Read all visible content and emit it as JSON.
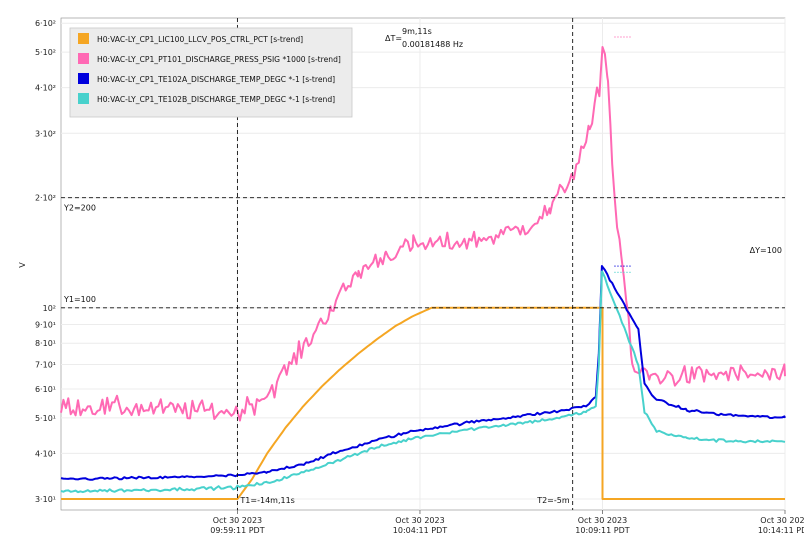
{
  "chart_data": {
    "type": "line",
    "y_axis_label": "V",
    "y_scale": "log",
    "ylim": [
      28,
      620
    ],
    "y_ticks": [
      {
        "label": "3·10¹",
        "value": 30
      },
      {
        "label": "4·10¹",
        "value": 40
      },
      {
        "label": "5·10¹",
        "value": 50
      },
      {
        "label": "6·10¹",
        "value": 60
      },
      {
        "label": "7·10¹",
        "value": 70
      },
      {
        "label": "8·10¹",
        "value": 80
      },
      {
        "label": "9·10¹",
        "value": 90
      },
      {
        "label": "10²",
        "value": 100
      },
      {
        "label": "2·10²",
        "value": 200
      },
      {
        "label": "3·10²",
        "value": 300
      },
      {
        "label": "4·10²",
        "value": 400
      },
      {
        "label": "5·10²",
        "value": 500
      },
      {
        "label": "6·10²",
        "value": 600
      }
    ],
    "xlim": [
      "2023-10-30 09:54:21",
      "2023-10-30 10:14:11"
    ],
    "x_ticks": [
      {
        "l1": "Oct 30 2023",
        "l2": "09:59:11 PDT",
        "time": "2023-10-30 09:59:11"
      },
      {
        "l1": "Oct 30 2023",
        "l2": "10:04:11 PDT",
        "time": "2023-10-30 10:04:11"
      },
      {
        "l1": "Oct 30 2023",
        "l2": "10:09:11 PDT",
        "time": "2023-10-30 10:09:11"
      },
      {
        "l1": "Oct 30 2023",
        "l2": "10:14:11 PDT",
        "time": "2023-10-30 10:14:11"
      }
    ],
    "legend_position": "top-left",
    "cursors": {
      "t1": {
        "label": "T1=-14m,11s",
        "time": "2023-10-30 09:59:11"
      },
      "t2": {
        "label": "T2=-5m",
        "time": "2023-10-30 10:08:22"
      },
      "y1": {
        "label": "Y1=100",
        "value": 100
      },
      "y2": {
        "label": "Y2=200",
        "value": 200
      },
      "delta_t_label": "ΔT=",
      "delta_t_value": "9m,11s",
      "delta_t_freq": "0.00181488 Hz",
      "delta_y": "ΔY=100"
    },
    "series": [
      {
        "name": "H0:VAC-LY_CP1_LIC100_LLCV_POS_CTRL_PCT [s-trend]",
        "color": "#F5A623",
        "points": [
          [
            "2023-10-30 09:54:21",
            30
          ],
          [
            "2023-10-30 09:59:11",
            30
          ],
          [
            "2023-10-30 09:59:35",
            34
          ],
          [
            "2023-10-30 10:00:00",
            40
          ],
          [
            "2023-10-30 10:00:30",
            47
          ],
          [
            "2023-10-30 10:01:00",
            54
          ],
          [
            "2023-10-30 10:01:30",
            61
          ],
          [
            "2023-10-30 10:02:00",
            68
          ],
          [
            "2023-10-30 10:02:30",
            75
          ],
          [
            "2023-10-30 10:03:00",
            82
          ],
          [
            "2023-10-30 10:03:30",
            89
          ],
          [
            "2023-10-30 10:04:00",
            95
          ],
          [
            "2023-10-30 10:04:30",
            100
          ],
          [
            "2023-10-30 10:09:11",
            100
          ],
          [
            "2023-10-30 10:09:11",
            30
          ],
          [
            "2023-10-30 10:14:11",
            30
          ]
        ],
        "noise": 0,
        "dotted_after": "2023-10-30 10:09:11"
      },
      {
        "name": "H0:VAC-LY_CP1_PT101_DISCHARGE_PRESS_PSIG *1000 [s-trend]",
        "color": "#FF69B4",
        "points": [
          [
            "2023-10-30 09:54:21",
            54
          ],
          [
            "2023-10-30 09:59:11",
            52
          ],
          [
            "2023-10-30 10:00:00",
            58
          ],
          [
            "2023-10-30 10:01:00",
            78
          ],
          [
            "2023-10-30 10:01:45",
            100
          ],
          [
            "2023-10-30 10:02:30",
            125
          ],
          [
            "2023-10-30 10:03:15",
            140
          ],
          [
            "2023-10-30 10:04:00",
            148
          ],
          [
            "2023-10-30 10:05:00",
            150
          ],
          [
            "2023-10-30 10:06:00",
            155
          ],
          [
            "2023-10-30 10:07:00",
            165
          ],
          [
            "2023-10-30 10:07:45",
            185
          ],
          [
            "2023-10-30 10:08:20",
            230
          ],
          [
            "2023-10-30 10:08:50",
            300
          ],
          [
            "2023-10-30 10:09:08",
            420
          ],
          [
            "2023-10-30 10:09:11",
            550
          ],
          [
            "2023-10-30 10:09:20",
            420
          ],
          [
            "2023-10-30 10:09:27",
            250
          ],
          [
            "2023-10-30 10:09:35",
            170
          ],
          [
            "2023-10-30 10:09:42",
            140
          ],
          [
            "2023-10-30 10:09:50",
            105
          ],
          [
            "2023-10-30 10:10:00",
            68
          ],
          [
            "2023-10-30 10:10:30",
            65
          ],
          [
            "2023-10-30 10:11:30",
            65
          ],
          [
            "2023-10-30 10:12:30",
            66
          ],
          [
            "2023-10-30 10:14:11",
            65
          ]
        ],
        "noise": 0.045,
        "dotted_after": "2023-10-30 10:09:11"
      },
      {
        "name": "H0:VAC-LY_CP1_TE102A_DISCHARGE_TEMP_DEGC *-1 [s-trend]",
        "color": "#0000DD",
        "points": [
          [
            "2023-10-30 09:54:21",
            34
          ],
          [
            "2023-10-30 09:57:00",
            34.3
          ],
          [
            "2023-10-30 09:59:11",
            34.8
          ],
          [
            "2023-10-30 10:00:00",
            35.5
          ],
          [
            "2023-10-30 10:01:00",
            37.5
          ],
          [
            "2023-10-30 10:02:00",
            40.5
          ],
          [
            "2023-10-30 10:03:00",
            43.5
          ],
          [
            "2023-10-30 10:04:00",
            46
          ],
          [
            "2023-10-30 10:05:00",
            47.8
          ],
          [
            "2023-10-30 10:06:00",
            49.3
          ],
          [
            "2023-10-30 10:07:00",
            50.7
          ],
          [
            "2023-10-30 10:08:00",
            52.2
          ],
          [
            "2023-10-30 10:08:45",
            54
          ],
          [
            "2023-10-30 10:09:00",
            57
          ],
          [
            "2023-10-30 10:09:05",
            75
          ],
          [
            "2023-10-30 10:09:10",
            130
          ],
          [
            "2023-10-30 10:09:11",
            130
          ],
          [
            "2023-10-30 10:10:10",
            87
          ],
          [
            "2023-10-30 10:10:20",
            62
          ],
          [
            "2023-10-30 10:10:40",
            56
          ],
          [
            "2023-10-30 10:11:30",
            52.5
          ],
          [
            "2023-10-30 10:12:30",
            51
          ],
          [
            "2023-10-30 10:14:11",
            50
          ]
        ],
        "noise": 0.006,
        "dotted_after": "2023-10-30 10:09:11"
      },
      {
        "name": "H0:VAC-LY_CP1_TE102B_DISCHARGE_TEMP_DEGC *-1 [s-trend]",
        "color": "#48D1CC",
        "points": [
          [
            "2023-10-30 09:54:21",
            31.5
          ],
          [
            "2023-10-30 09:57:00",
            31.8
          ],
          [
            "2023-10-30 09:59:11",
            32.3
          ],
          [
            "2023-10-30 10:00:00",
            33.2
          ],
          [
            "2023-10-30 10:01:00",
            35.5
          ],
          [
            "2023-10-30 10:02:00",
            38.5
          ],
          [
            "2023-10-30 10:03:00",
            41.5
          ],
          [
            "2023-10-30 10:04:00",
            44
          ],
          [
            "2023-10-30 10:05:00",
            45.8
          ],
          [
            "2023-10-30 10:06:00",
            47.2
          ],
          [
            "2023-10-30 10:07:00",
            48.5
          ],
          [
            "2023-10-30 10:08:00",
            50
          ],
          [
            "2023-10-30 10:08:45",
            52
          ],
          [
            "2023-10-30 10:09:00",
            54
          ],
          [
            "2023-10-30 10:09:05",
            70
          ],
          [
            "2023-10-30 10:09:10",
            125
          ],
          [
            "2023-10-30 10:09:11",
            125
          ],
          [
            "2023-10-30 10:10:10",
            70
          ],
          [
            "2023-10-30 10:10:20",
            52
          ],
          [
            "2023-10-30 10:10:40",
            46
          ],
          [
            "2023-10-30 10:11:30",
            44
          ],
          [
            "2023-10-30 10:12:30",
            43.3
          ],
          [
            "2023-10-30 10:14:11",
            43
          ]
        ],
        "noise": 0.007,
        "dotted_after": "2023-10-30 10:09:11"
      }
    ]
  }
}
